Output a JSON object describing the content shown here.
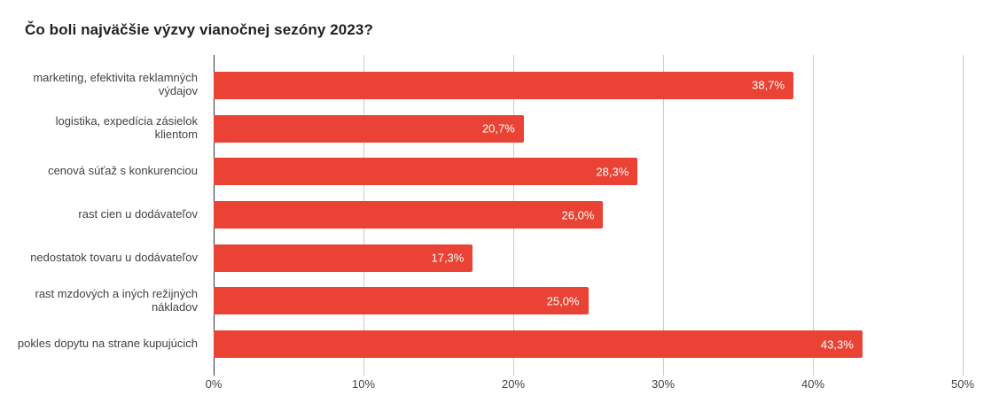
{
  "title": "Čo boli najväčšie výzvy vianočnej sezóny 2023?",
  "colors": {
    "bar": "#EA4335",
    "gridline": "#cccccc",
    "zero_axis_line": "#333333",
    "title_text": "#212121",
    "axis_text": "#424242",
    "bar_value_text": "#ffffff",
    "background": "#ffffff"
  },
  "chart_data": {
    "type": "bar",
    "orientation": "horizontal",
    "title": "Čo boli najväčšie výzvy vianočnej sezóny 2023?",
    "xlabel": "",
    "ylabel": "",
    "categories": [
      "marketing, efektivita reklamných výdajov",
      "logistika, expedícia zásielok klientom",
      "cenová súťaž s konkurenciou",
      "rast cien u dodávateľov",
      "nedostatok tovaru u dodávateľov",
      "rast mzdových a iných režijných nákladov",
      "pokles dopytu na strane kupujúcich"
    ],
    "values": [
      38.7,
      20.7,
      28.3,
      26.0,
      17.3,
      25.0,
      43.3
    ],
    "value_labels": [
      "38,7%",
      "20,7%",
      "28,3%",
      "26,0%",
      "17,3%",
      "25,0%",
      "43,3%"
    ],
    "xlim": [
      0,
      50
    ],
    "x_tick_values": [
      0,
      10,
      20,
      30,
      40,
      50
    ],
    "x_tick_labels": [
      "0%",
      "10%",
      "20%",
      "30%",
      "40%",
      "50%"
    ],
    "grid": "vertical gridlines on",
    "legend": "none"
  }
}
